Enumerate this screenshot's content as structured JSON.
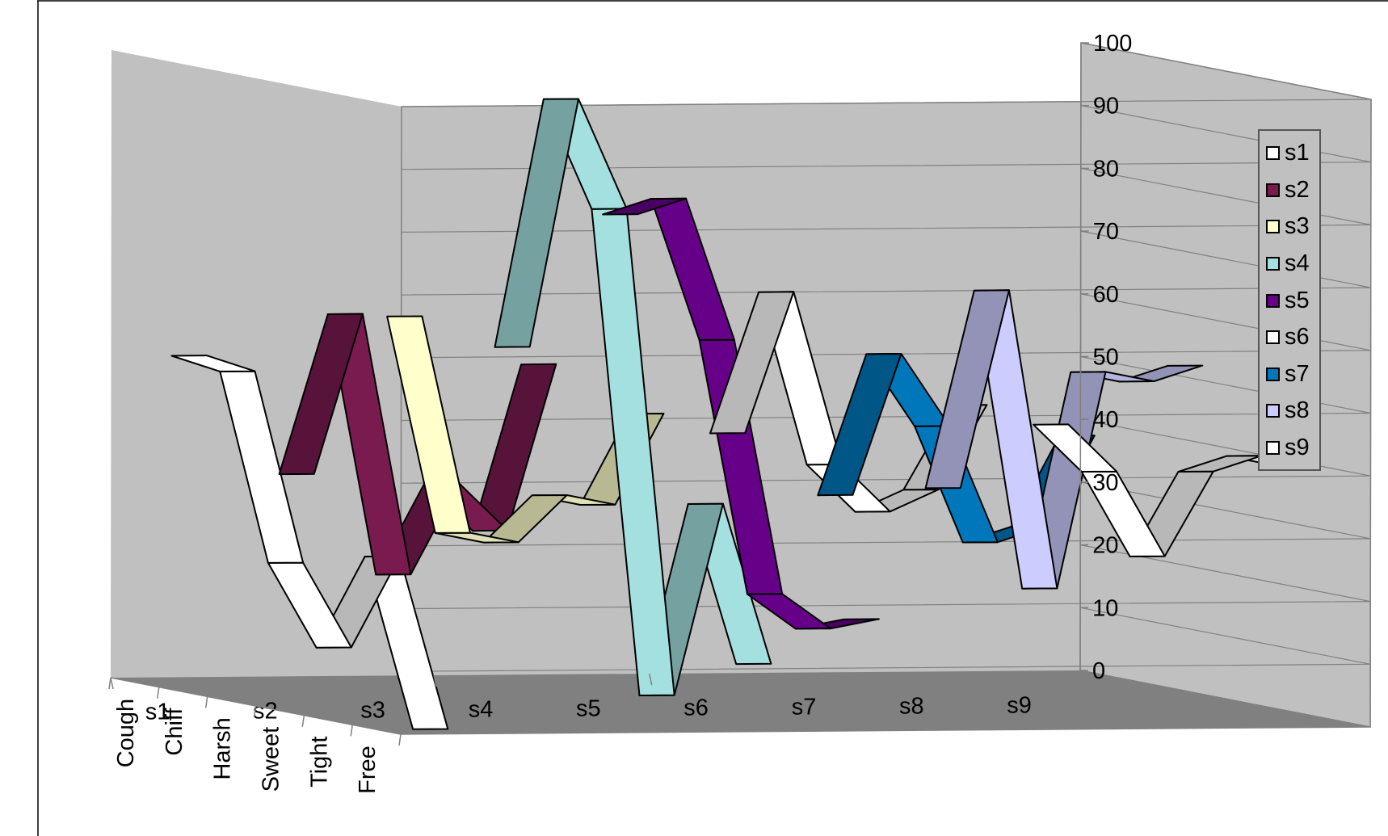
{
  "chart_data": {
    "type": "line",
    "variant": "3d-ribbon",
    "title": "",
    "xlabel": "",
    "ylabel": "",
    "ylim": [
      0,
      100
    ],
    "y_ticks": [
      0,
      10,
      20,
      30,
      40,
      50,
      60,
      70,
      80,
      90,
      100
    ],
    "depth_categories": [
      "Cough",
      "Chiff",
      "Harsh",
      "Sweet",
      "Tight",
      "Free"
    ],
    "series": [
      {
        "name": "s1",
        "color": "#ffffff",
        "values": [
          52,
          51,
          22,
          10,
          26,
          0
        ]
      },
      {
        "name": "s2",
        "color": "#7a1b50",
        "values": [
          33,
          60,
          20,
          36,
          30,
          58
        ]
      },
      {
        "name": "s3",
        "color": "#ffffcc",
        "values": [
          58,
          25,
          25,
          34,
          34,
          50
        ]
      },
      {
        "name": "s4",
        "color": "#a4e0e0",
        "values": [
          53,
          94,
          78,
          2,
          34,
          10
        ]
      },
      {
        "name": "s5",
        "color": "#660088",
        "values": [
          74,
          78,
          57,
          18,
          14,
          17
        ]
      },
      {
        "name": "s6",
        "color": "#ffffff",
        "values": [
          39,
          63,
          37,
          31,
          36,
          51
        ]
      },
      {
        "name": "s7",
        "color": "#0077bb",
        "values": [
          29,
          53,
          43,
          26,
          30,
          46
        ]
      },
      {
        "name": "s8",
        "color": "#ccccff",
        "values": [
          30,
          63,
          17,
          53,
          53,
          57
        ]
      },
      {
        "name": "s9",
        "color": "#ffffff",
        "values": [
          40,
          34,
          22,
          37,
          41,
          41
        ]
      }
    ],
    "legend_position": "right",
    "grid": true,
    "colors": {
      "walls": "#c0c0c0",
      "floor": "#808080",
      "gridline": "#808080"
    }
  }
}
